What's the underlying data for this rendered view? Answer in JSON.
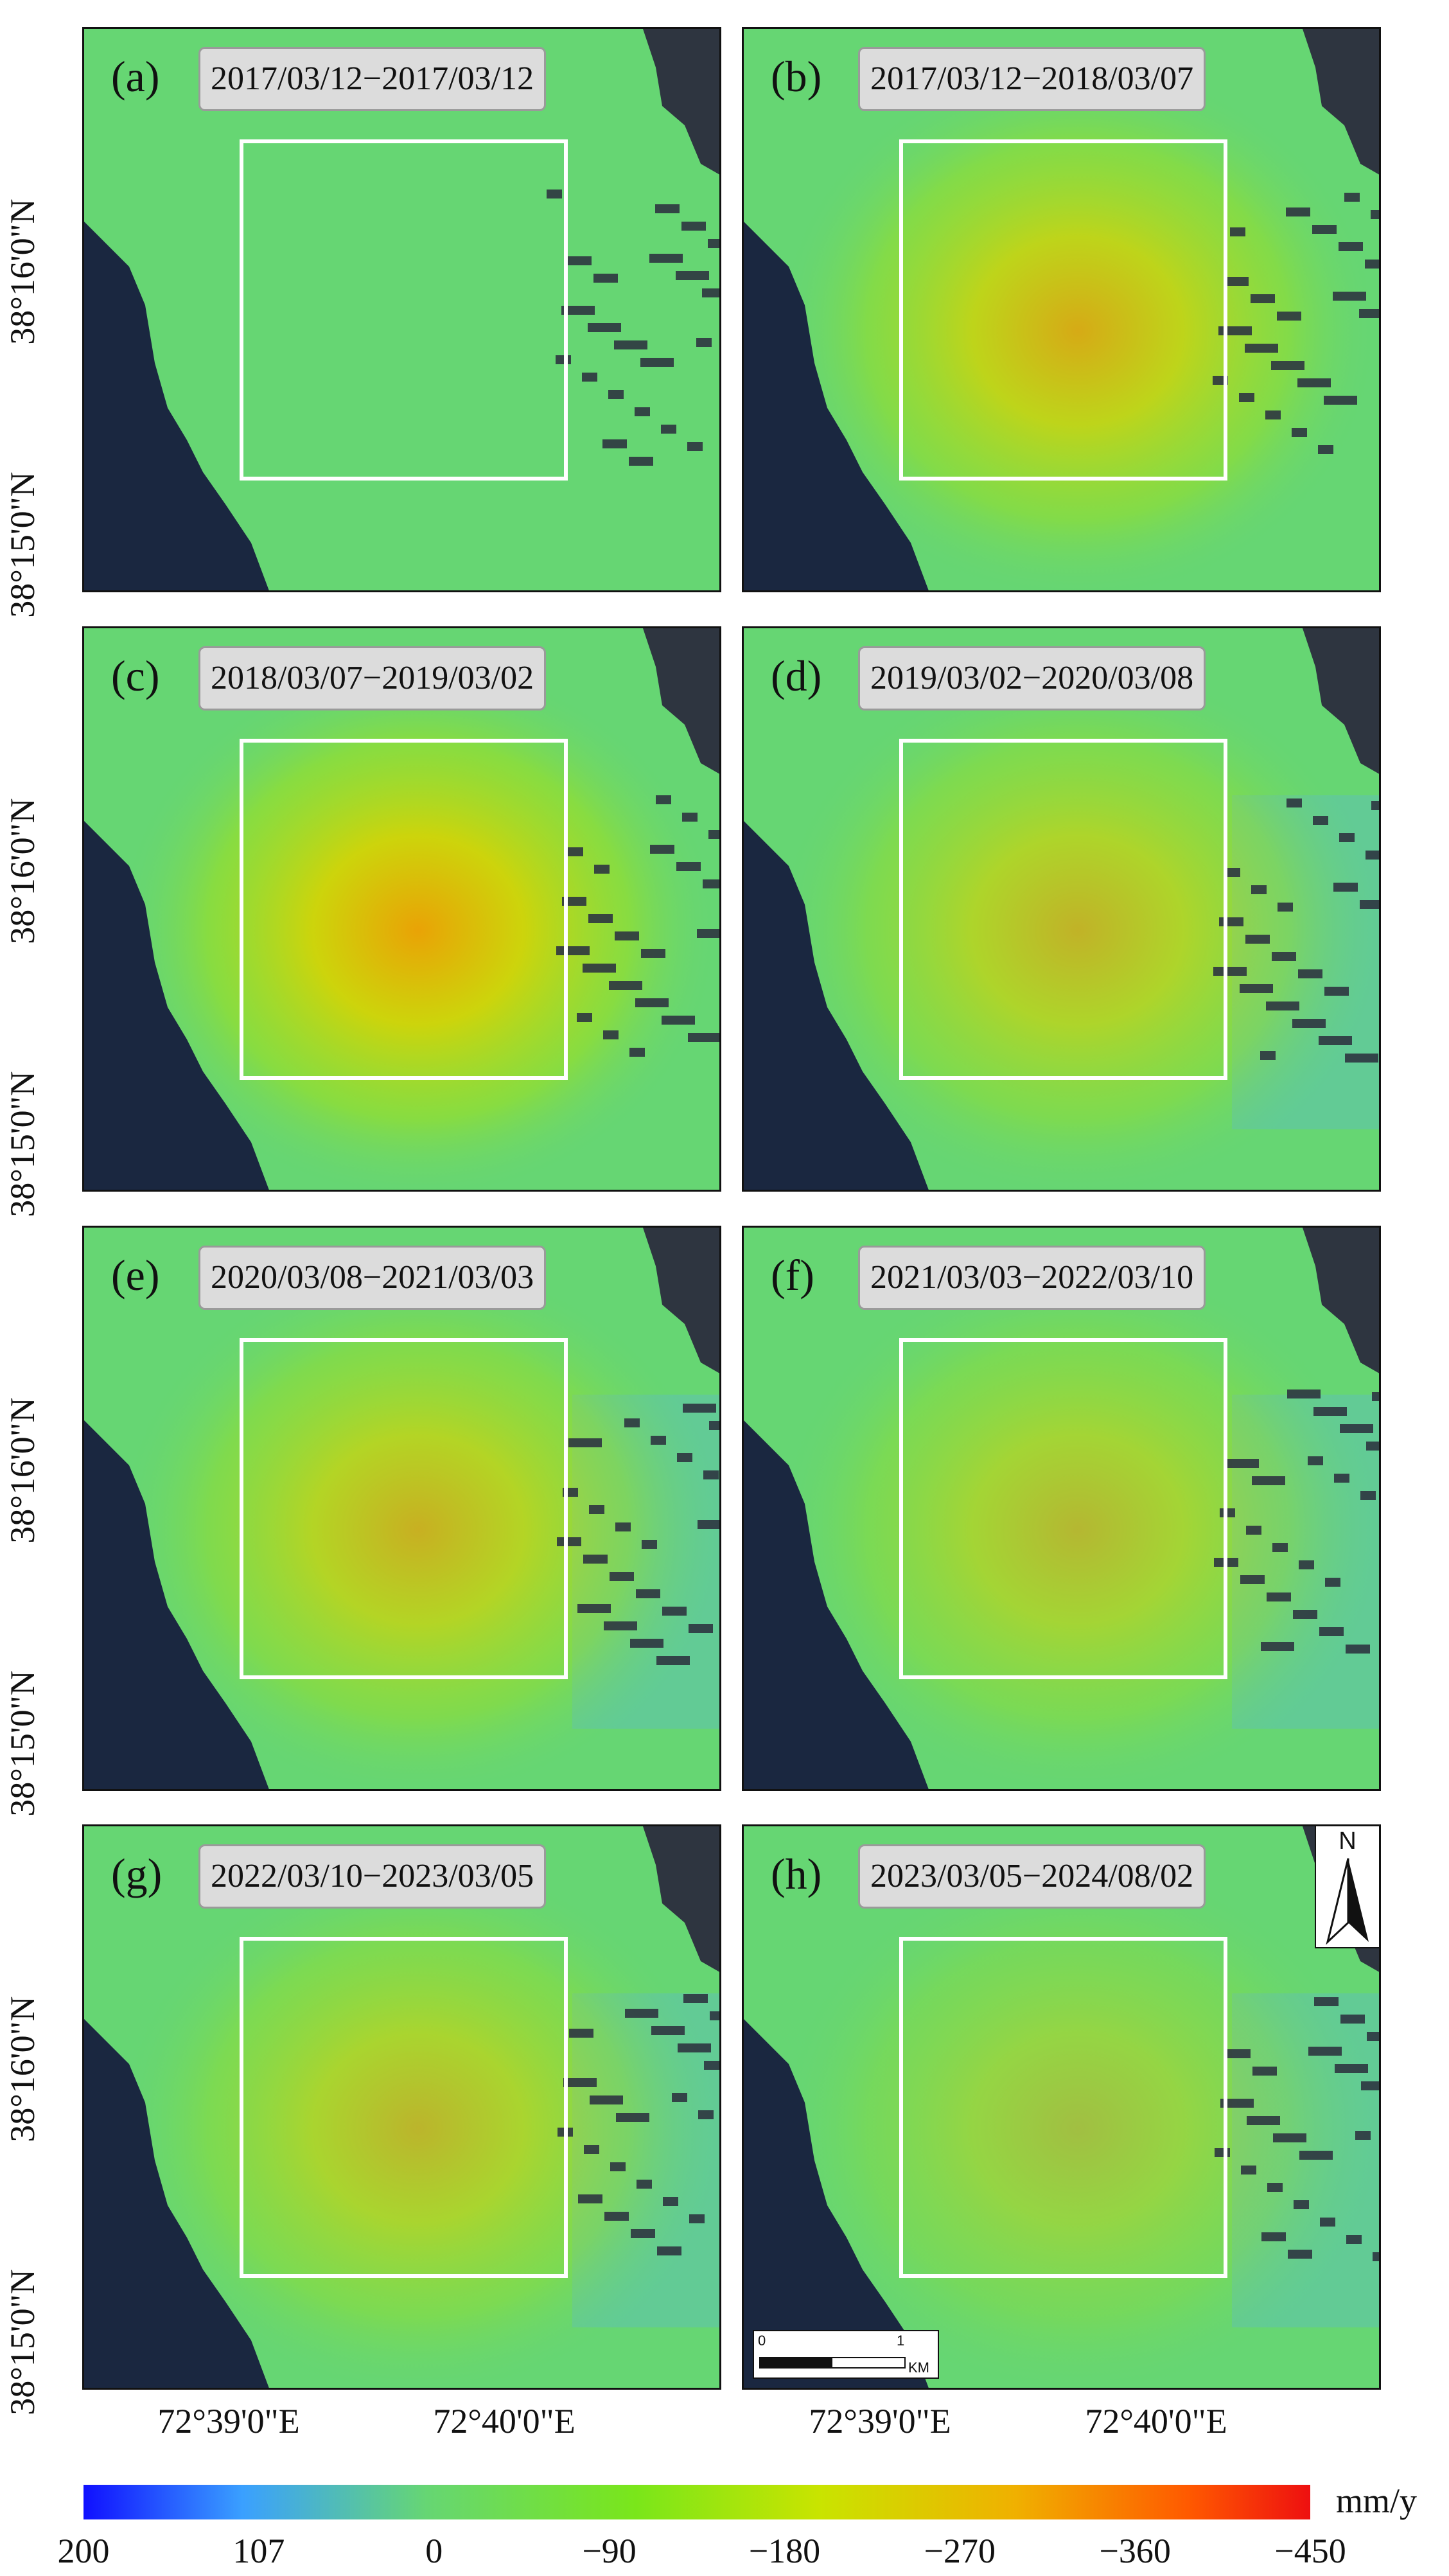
{
  "panels": [
    {
      "label": "(a)",
      "dates": "2017/03/12−2017/03/12",
      "intensity": 0.0
    },
    {
      "label": "(b)",
      "dates": "2017/03/12−2018/03/07",
      "intensity": 0.85
    },
    {
      "label": "(c)",
      "dates": "2018/03/07−2019/03/02",
      "intensity": 1.0
    },
    {
      "label": "(d)",
      "dates": "2019/03/02−2020/03/08",
      "intensity": 0.7
    },
    {
      "label": "(e)",
      "dates": "2020/03/08−2021/03/03",
      "intensity": 0.75
    },
    {
      "label": "(f)",
      "dates": "2021/03/03−2022/03/10",
      "intensity": 0.6
    },
    {
      "label": "(g)",
      "dates": "2022/03/10−2023/03/05",
      "intensity": 0.65
    },
    {
      "label": "(h)",
      "dates": "2023/03/05−2024/08/02",
      "intensity": 0.45
    }
  ],
  "axes": {
    "y_ticks": [
      "38°16'0\"N",
      "38°15'0\"N"
    ],
    "x_ticks": [
      "72°39'0\"E",
      "72°40'0\"E"
    ]
  },
  "scale_bar": {
    "start": "0",
    "end": "1",
    "unit": "KM"
  },
  "north_arrow": {
    "label": "N"
  },
  "colorbar": {
    "ticks": [
      "200",
      "107",
      "0",
      "−90",
      "−180",
      "−270",
      "−360",
      "−450"
    ],
    "unit": "mm/y",
    "colors": [
      "#1010ff",
      "#3aa0ff",
      "#66d673",
      "#7ae61a",
      "#c9e400",
      "#f0b000",
      "#ff5a00",
      "#ee1010"
    ]
  },
  "colors": {
    "water": "#1a2740",
    "background": "#66d673",
    "no_data": "#2e3540",
    "study_area_outline": "#ffffff"
  }
}
